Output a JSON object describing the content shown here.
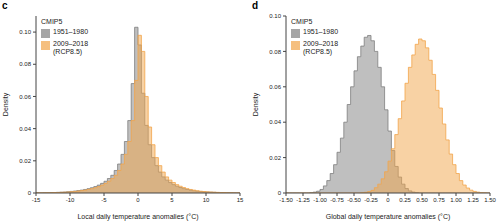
{
  "chart_data": [
    {
      "type": "histogram",
      "title": "c",
      "legend_title": "CMIP5",
      "legend": "upper left",
      "x_label": "Local daily temperature anomalies (°C)",
      "y_label": "Density",
      "xlim": [
        -15,
        15
      ],
      "xticks": [
        -15,
        -10,
        -5,
        0,
        5,
        10,
        15
      ],
      "ylim": [
        0,
        0.11
      ],
      "yticks": [
        0,
        0.02,
        0.04,
        0.06,
        0.08,
        {
          "value": 0.1,
          "label": "0.10"
        }
      ],
      "bins": [
        -15,
        -14.5,
        -14,
        -13.5,
        -13,
        -12.5,
        -12,
        -11.5,
        -11,
        -10.5,
        -10,
        -9.5,
        -9,
        -8.5,
        -8,
        -7.5,
        -7,
        -6.5,
        -6,
        -5.5,
        -5,
        -4.5,
        -4,
        -3.5,
        -3,
        -2.5,
        -2,
        -1.5,
        -1,
        -0.5,
        0,
        0.5,
        1,
        1.5,
        2,
        2.5,
        3,
        3.5,
        4,
        4.5,
        5,
        5.5,
        6,
        6.5,
        7,
        7.5,
        8,
        8.5,
        9,
        9.5,
        10,
        10.5,
        11,
        11.5,
        12,
        12.5,
        13,
        13.5,
        14,
        14.5,
        15
      ],
      "series": [
        {
          "name": "1951–1980",
          "color": "#7f7f7f",
          "values": [
            0.0001,
            0.0001,
            0.0002,
            0.0002,
            0.0003,
            0.0003,
            0.0004,
            0.0005,
            0.0006,
            0.0008,
            0.001,
            0.0012,
            0.0015,
            0.0018,
            0.0022,
            0.0027,
            0.0033,
            0.004,
            0.0049,
            0.006,
            0.0073,
            0.009,
            0.011,
            0.014,
            0.018,
            0.024,
            0.032,
            0.045,
            0.068,
            0.103,
            0.092,
            0.062,
            0.042,
            0.03,
            0.022,
            0.017,
            0.013,
            0.01,
            0.008,
            0.0065,
            0.0052,
            0.0042,
            0.0034,
            0.0027,
            0.0022,
            0.0018,
            0.0014,
            0.0011,
            0.0009,
            0.0007,
            0.0006,
            0.0005,
            0.0004,
            0.0003,
            0.0003,
            0.0002,
            0.0002,
            0.0001,
            0.0001,
            0.0001
          ]
        },
        {
          "name": "2009–2018 (RCP8.5)",
          "color": "#f2a54a",
          "values": [
            0.0001,
            0.0001,
            0.0001,
            0.0002,
            0.0002,
            0.0003,
            0.0003,
            0.0004,
            0.0005,
            0.0006,
            0.0008,
            0.001,
            0.0012,
            0.0015,
            0.0018,
            0.0022,
            0.0027,
            0.0033,
            0.004,
            0.0049,
            0.006,
            0.0073,
            0.009,
            0.011,
            0.014,
            0.018,
            0.024,
            0.032,
            0.045,
            0.07,
            0.098,
            0.088,
            0.06,
            0.041,
            0.03,
            0.022,
            0.017,
            0.013,
            0.01,
            0.008,
            0.0065,
            0.0052,
            0.0042,
            0.0034,
            0.0027,
            0.0022,
            0.0018,
            0.0014,
            0.0011,
            0.0009,
            0.0007,
            0.0006,
            0.0005,
            0.0004,
            0.0003,
            0.0003,
            0.0002,
            0.0002,
            0.0001,
            0.0001
          ]
        }
      ]
    },
    {
      "type": "histogram",
      "title": "d",
      "legend_title": "CMIP5",
      "legend": "upper left",
      "x_label": "Global daily temperature anomalies (°C)",
      "y_label": "Density",
      "xlim": [
        -1.5,
        1.5
      ],
      "xticks": [
        {
          "value": -1.5,
          "label": "-1.50"
        },
        {
          "value": -1.25,
          "label": "-1.25"
        },
        {
          "value": -1,
          "label": "-1.00"
        },
        {
          "value": -0.75,
          "label": "-0.75"
        },
        {
          "value": -0.5,
          "label": "-0.50"
        },
        {
          "value": -0.25,
          "label": "-0.25"
        },
        0,
        0.25,
        {
          "value": 0.5,
          "label": "0.50"
        },
        0.75,
        {
          "value": 1,
          "label": "1.00"
        },
        1.25,
        {
          "value": 1.5,
          "label": "1.50"
        }
      ],
      "ylim": [
        0,
        0.1
      ],
      "yticks": [
        0,
        0.02,
        0.04,
        0.06,
        0.08,
        {
          "value": 0.1,
          "label": "0.10"
        }
      ],
      "bins": [
        -1.5,
        -1.45,
        -1.4,
        -1.35,
        -1.3,
        -1.25,
        -1.2,
        -1.15,
        -1.1,
        -1.05,
        -1,
        -0.95,
        -0.9,
        -0.85,
        -0.8,
        -0.75,
        -0.7,
        -0.65,
        -0.6,
        -0.55,
        -0.5,
        -0.45,
        -0.4,
        -0.35,
        -0.3,
        -0.25,
        -0.2,
        -0.15,
        -0.1,
        -0.05,
        0,
        0.05,
        0.1,
        0.15,
        0.2,
        0.25,
        0.3,
        0.35,
        0.4,
        0.45,
        0.5,
        0.55,
        0.6,
        0.65,
        0.7,
        0.75,
        0.8,
        0.85,
        0.9,
        0.95,
        1,
        1.05,
        1.1,
        1.15,
        1.2,
        1.25,
        1.3,
        1.35,
        1.4,
        1.45,
        1.5
      ],
      "series": [
        {
          "name": "1951–1980",
          "color": "#7f7f7f",
          "values": [
            0,
            0,
            0,
            0,
            0,
            0,
            0,
            0.0002,
            0.0005,
            0.001,
            0.002,
            0.004,
            0.007,
            0.011,
            0.016,
            0.023,
            0.031,
            0.04,
            0.05,
            0.06,
            0.069,
            0.077,
            0.083,
            0.088,
            0.089,
            0.086,
            0.08,
            0.071,
            0.06,
            0.047,
            0.035,
            0.024,
            0.015,
            0.009,
            0.005,
            0.0025,
            0.0012,
            0.0005,
            0.0002,
            0,
            0,
            0,
            0,
            0,
            0,
            0,
            0,
            0,
            0,
            0,
            0,
            0,
            0,
            0,
            0,
            0,
            0,
            0,
            0,
            0
          ]
        },
        {
          "name": "2009–2018 (RCP8.5)",
          "color": "#f2a54a",
          "values": [
            0,
            0,
            0,
            0,
            0,
            0,
            0,
            0,
            0,
            0,
            0,
            0,
            0,
            0,
            0,
            0,
            0,
            0,
            0,
            0,
            0,
            0,
            0.0002,
            0.0004,
            0.0008,
            0.0015,
            0.003,
            0.005,
            0.008,
            0.012,
            0.018,
            0.025,
            0.033,
            0.042,
            0.052,
            0.062,
            0.071,
            0.078,
            0.084,
            0.087,
            0.086,
            0.082,
            0.075,
            0.067,
            0.058,
            0.048,
            0.039,
            0.03,
            0.022,
            0.016,
            0.011,
            0.007,
            0.0045,
            0.0028,
            0.0016,
            0.0009,
            0.0005,
            0.0002,
            0.0001,
            0
          ]
        }
      ]
    }
  ]
}
